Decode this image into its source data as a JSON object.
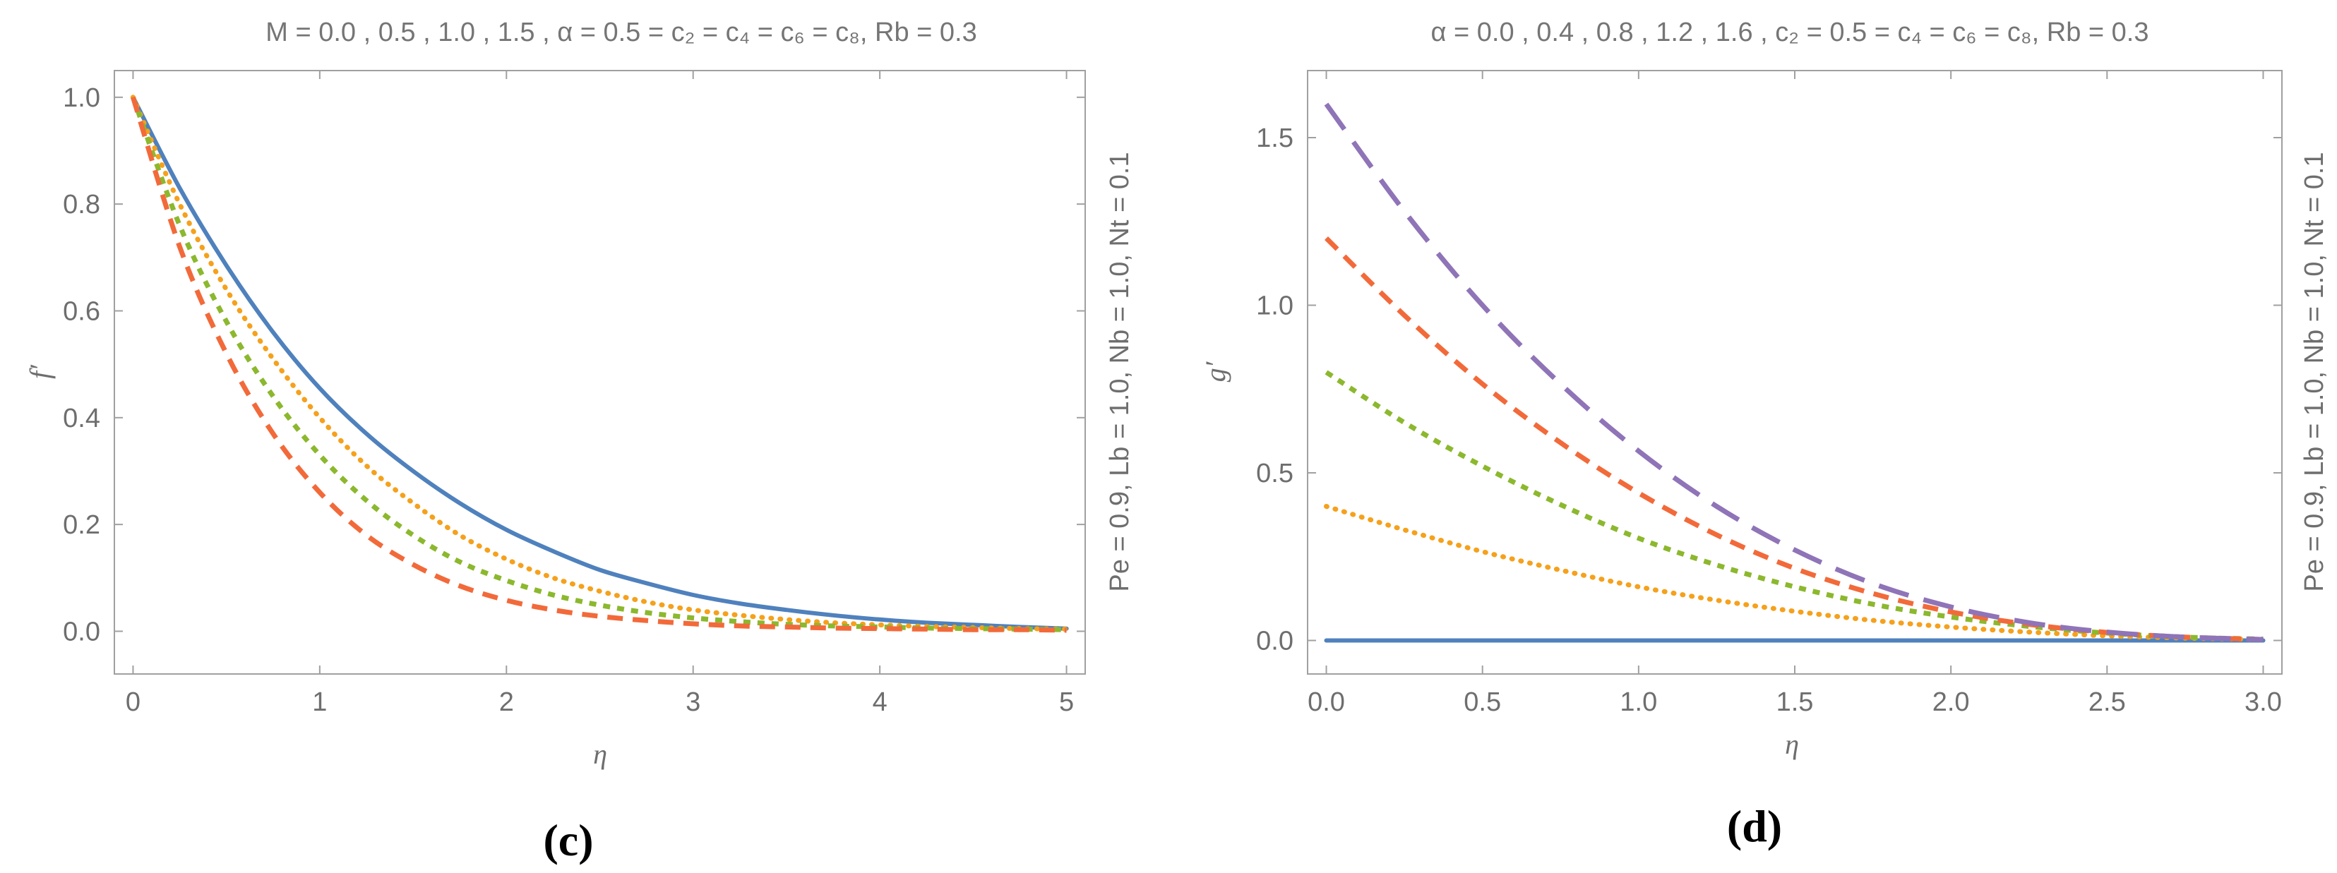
{
  "chart_data": [
    {
      "type": "line",
      "panel_label": "(c)",
      "title": "M = 0.0 , 0.5 , 1.0 , 1.5 , α = 0.5 = c₂ = c₄ = c₆ = c₈, Rb = 0.3",
      "side_text": "Pe = 0.9, Lb = 1.0, Nb = 1.0, Nt = 0.1",
      "xlabel": "η",
      "ylabel": "f′",
      "xlim": [
        -0.1,
        5.1
      ],
      "ylim": [
        -0.08,
        1.05
      ],
      "x_ticks": [
        0,
        1,
        2,
        3,
        4,
        5
      ],
      "x_tick_labels": [
        "0",
        "1",
        "2",
        "3",
        "4",
        "5"
      ],
      "y_ticks": [
        0.0,
        0.2,
        0.4,
        0.6,
        0.8,
        1.0
      ],
      "y_tick_labels": [
        "0.0",
        "0.2",
        "0.4",
        "0.6",
        "0.8",
        "1.0"
      ],
      "x": [
        0,
        0.25,
        0.5,
        0.75,
        1,
        1.25,
        1.5,
        1.75,
        2,
        2.25,
        2.5,
        2.75,
        3,
        3.25,
        3.5,
        3.75,
        4,
        4.25,
        4.5,
        4.75,
        5
      ],
      "series": [
        {
          "name": "M = 0.0",
          "color": "#4f81bd",
          "style": "solid",
          "values": [
            1.0,
            0.83,
            0.685,
            0.56,
            0.455,
            0.37,
            0.3,
            0.24,
            0.19,
            0.15,
            0.115,
            0.09,
            0.068,
            0.052,
            0.04,
            0.03,
            0.022,
            0.016,
            0.012,
            0.008,
            0.005
          ]
        },
        {
          "name": "M = 0.5",
          "color": "#f5a11c",
          "style": "dotted",
          "values": [
            1.0,
            0.8,
            0.64,
            0.51,
            0.4,
            0.31,
            0.24,
            0.18,
            0.135,
            0.1,
            0.075,
            0.055,
            0.04,
            0.03,
            0.022,
            0.016,
            0.012,
            0.009,
            0.007,
            0.005,
            0.004
          ]
        },
        {
          "name": "M = 1.0",
          "color": "#8cb82e",
          "style": "densedash",
          "values": [
            1.0,
            0.76,
            0.58,
            0.44,
            0.33,
            0.245,
            0.18,
            0.13,
            0.095,
            0.068,
            0.049,
            0.035,
            0.025,
            0.018,
            0.013,
            0.01,
            0.008,
            0.006,
            0.005,
            0.004,
            0.003
          ]
        },
        {
          "name": "M = 1.5",
          "color": "#f26a3a",
          "style": "dashed",
          "values": [
            1.0,
            0.72,
            0.52,
            0.37,
            0.26,
            0.18,
            0.125,
            0.085,
            0.058,
            0.04,
            0.028,
            0.02,
            0.014,
            0.01,
            0.008,
            0.006,
            0.005,
            0.004,
            0.003,
            0.003,
            0.002
          ]
        }
      ]
    },
    {
      "type": "line",
      "panel_label": "(d)",
      "title": "α = 0.0 , 0.4 , 0.8 , 1.2 , 1.6 , c₂ = 0.5 = c₄ = c₆ = c₈, Rb = 0.3",
      "side_text": "Pe = 0.9, Lb = 1.0, Nb = 1.0, Nt = 0.1",
      "xlabel": "η",
      "ylabel": "g′",
      "xlim": [
        -0.06,
        3.06
      ],
      "ylim": [
        -0.1,
        1.7
      ],
      "x_ticks": [
        0,
        0.5,
        1.0,
        1.5,
        2.0,
        2.5,
        3.0
      ],
      "x_tick_labels": [
        "0.0",
        "0.5",
        "1.0",
        "1.5",
        "2.0",
        "2.5",
        "3.0"
      ],
      "y_ticks": [
        0.0,
        0.5,
        1.0,
        1.5
      ],
      "y_tick_labels": [
        "0.0",
        "0.5",
        "1.0",
        "1.5"
      ],
      "x": [
        0,
        0.25,
        0.5,
        0.75,
        1,
        1.25,
        1.5,
        1.75,
        2,
        2.25,
        2.5,
        2.75,
        3
      ],
      "series": [
        {
          "name": "α = 0.0",
          "color": "#4f81bd",
          "style": "solid",
          "values": [
            0,
            0,
            0,
            0,
            0,
            0,
            0,
            0,
            0,
            0,
            0,
            0,
            0
          ]
        },
        {
          "name": "α = 0.4",
          "color": "#f5a11c",
          "style": "dotted",
          "values": [
            0.4,
            0.33,
            0.265,
            0.21,
            0.16,
            0.12,
            0.087,
            0.06,
            0.04,
            0.025,
            0.014,
            0.007,
            0.003
          ]
        },
        {
          "name": "α = 0.8",
          "color": "#8cb82e",
          "style": "densedash",
          "values": [
            0.8,
            0.65,
            0.52,
            0.405,
            0.305,
            0.225,
            0.16,
            0.108,
            0.07,
            0.042,
            0.022,
            0.01,
            0.004
          ]
        },
        {
          "name": "α = 1.2",
          "color": "#f26a3a",
          "style": "dashed",
          "values": [
            1.2,
            0.97,
            0.765,
            0.59,
            0.44,
            0.315,
            0.215,
            0.14,
            0.085,
            0.048,
            0.024,
            0.01,
            0.003
          ]
        },
        {
          "name": "α = 1.6",
          "color": "#8f74b8",
          "style": "longdash",
          "values": [
            1.6,
            1.28,
            1.0,
            0.765,
            0.565,
            0.4,
            0.27,
            0.17,
            0.1,
            0.053,
            0.025,
            0.01,
            0.003
          ]
        }
      ]
    }
  ]
}
